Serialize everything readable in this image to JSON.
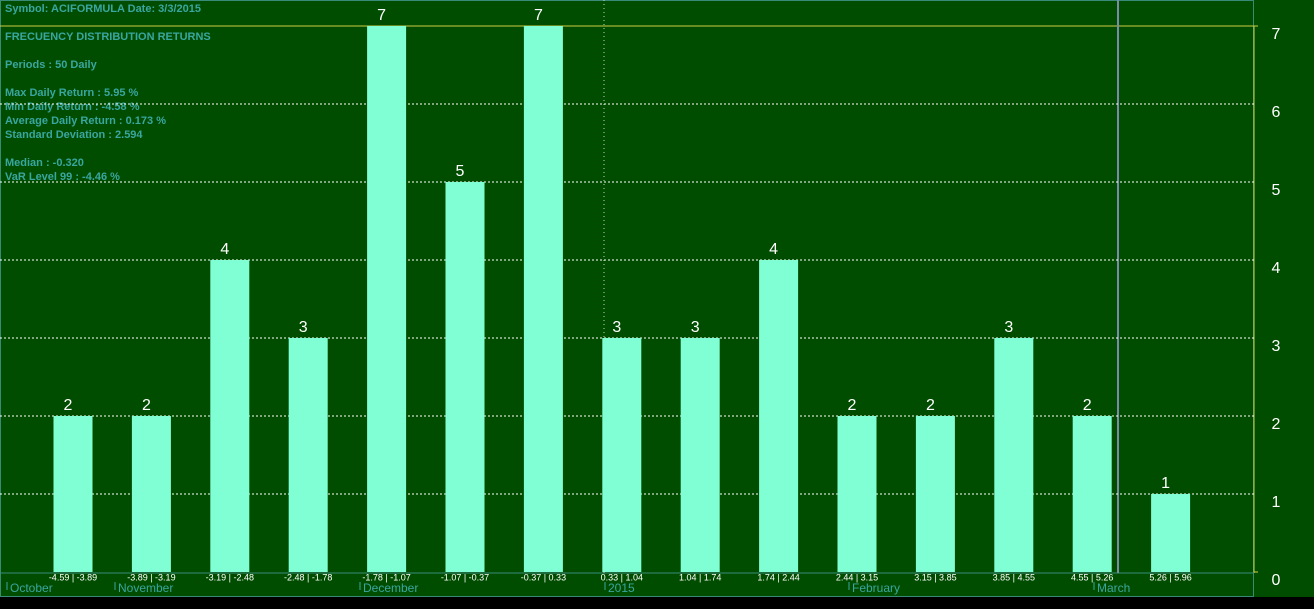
{
  "chart_data": {
    "type": "bar",
    "header": "Symbol:  ACIFORMULA  Date:  3/3/2015",
    "title": "FRECUENCY DISTRIBUTION RETURNS",
    "info_lines": [
      "Periods :   50  Daily",
      "Max Daily Return        :   5.95 %",
      "Min Daily Return         :  -4.58 %",
      "Average Daily Return   :   0.173 %",
      " Standard Deviation :    2.594",
      "Median : -0.320",
      "VaR Level 99 :  -4.46 %"
    ],
    "categories": [
      "-4.59 | -3.89",
      "-3.89 | -3.19",
      "-3.19 | -2.48",
      "-2.48 | -1.78",
      "-1.78 | -1.07",
      "-1.07 | -0.37",
      "-0.37 | 0.33",
      "0.33 | 1.04",
      "1.04 | 1.74",
      "1.74 | 2.44",
      "2.44 | 3.15",
      "3.15 | 3.85",
      "3.85 | 4.55",
      "4.55 | 5.26",
      "5.26 | 5.96"
    ],
    "values": [
      2,
      2,
      4,
      3,
      7,
      5,
      7,
      3,
      3,
      4,
      2,
      2,
      3,
      2,
      1
    ],
    "color": "#80ffd4",
    "ylim": [
      0,
      7
    ],
    "yticks": [
      0,
      1,
      2,
      3,
      4,
      5,
      6,
      7
    ],
    "grid": true,
    "date_labels": [
      "October",
      "November",
      "December",
      "2015",
      "February",
      "March"
    ]
  }
}
